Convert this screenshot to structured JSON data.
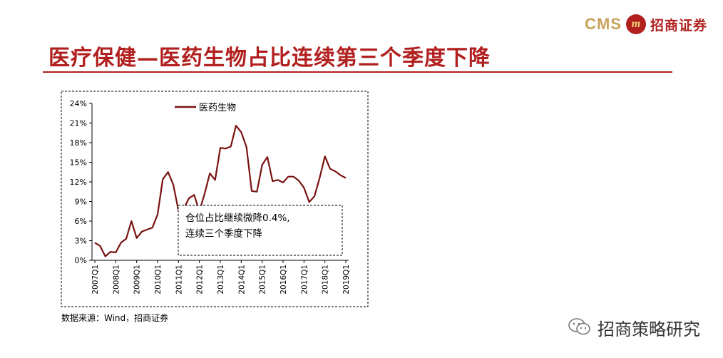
{
  "header": {
    "logo_text": "CMS",
    "logo_badge": "m",
    "logo_company": "招商证券",
    "title": "医疗保健—医药生物占比连续第三个季度下降"
  },
  "chart_data": {
    "type": "line",
    "title": "",
    "xlabel": "",
    "ylabel": "",
    "ylim": [
      0,
      24
    ],
    "y_ticks": [
      "0%",
      "3%",
      "6%",
      "9%",
      "12%",
      "15%",
      "18%",
      "21%",
      "24%"
    ],
    "x_tick_labels": [
      "2007Q1",
      "2008Q1",
      "2009Q1",
      "2010Q1",
      "2011Q1",
      "2012Q1",
      "2013Q1",
      "2014Q1",
      "2015Q1",
      "2016Q1",
      "2017Q1",
      "2018Q1",
      "2019Q1"
    ],
    "legend": {
      "position": "top",
      "entries": [
        "医药生物"
      ]
    },
    "series": [
      {
        "name": "医药生物",
        "color": "#7b1212",
        "values": [
          2.7,
          2.2,
          0.6,
          1.3,
          1.2,
          2.7,
          3.3,
          6.0,
          3.4,
          4.4,
          4.7,
          5.0,
          7.0,
          12.4,
          13.5,
          11.6,
          7.6,
          7.9,
          9.5,
          10.0,
          7.5,
          10.2,
          13.3,
          12.3,
          17.2,
          17.1,
          17.4,
          20.6,
          19.6,
          17.3,
          10.6,
          10.5,
          14.6,
          15.8,
          12.1,
          12.3,
          11.9,
          12.8,
          12.8,
          12.2,
          11.1,
          8.9,
          9.8,
          12.6,
          15.9,
          14.0,
          13.6,
          13.0,
          12.6
        ]
      }
    ],
    "annotation": {
      "line1": "仓位占比继续微降0.4%,",
      "line2": "连续三个季度下降"
    }
  },
  "source": "数据来源：Wind，招商证券",
  "footer": {
    "brand": "招商策略研究",
    "icon": "wechat-icon"
  }
}
